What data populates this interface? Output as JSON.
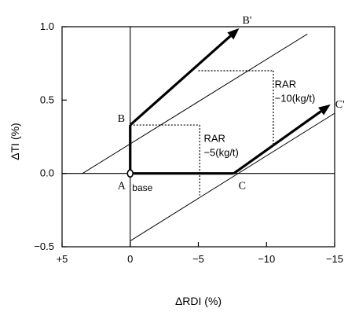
{
  "chart_data": {
    "type": "line",
    "title": "",
    "xlabel": "ΔRDI (%)",
    "ylabel": "ΔTI (%)",
    "xlim": [
      5,
      -15
    ],
    "ylim": [
      -0.5,
      1.0
    ],
    "x_ticks": [
      5,
      0,
      -5,
      -10,
      -15
    ],
    "x_tick_labels": [
      "+5",
      "0",
      "−5",
      "−10",
      "−15"
    ],
    "y_ticks": [
      -0.5,
      0.0,
      0.5,
      1.0
    ],
    "y_tick_labels": [
      "−0.5",
      "0.0",
      "0.5",
      "1.0"
    ],
    "grid": false,
    "reference_lines": [
      {
        "x": [
          5,
          -15
        ],
        "y": [
          0,
          0
        ]
      },
      {
        "x": [
          0,
          0
        ],
        "y": [
          -0.5,
          1.0
        ]
      }
    ],
    "iso_lines": [
      {
        "x": [
          3.5,
          -13.0
        ],
        "y": [
          0.0,
          0.95
        ]
      },
      {
        "x": [
          0.0,
          -15.0
        ],
        "y": [
          -0.46,
          0.41
        ]
      }
    ],
    "paths": [
      {
        "x": [
          0,
          0
        ],
        "y": [
          0,
          0.33
        ]
      },
      {
        "x": [
          0,
          -7.6
        ],
        "y": [
          0,
          0
        ]
      }
    ],
    "arrows": [
      {
        "x": [
          0,
          -8.0
        ],
        "y": [
          0.33,
          0.99
        ]
      },
      {
        "x": [
          -7.6,
          -14.7
        ],
        "y": [
          0,
          0.47
        ]
      }
    ],
    "dotted_lines": [
      {
        "x": [
          0,
          -5.1
        ],
        "y": [
          0.33,
          0.33
        ]
      },
      {
        "x": [
          -5.1,
          -5.1
        ],
        "y": [
          0.33,
          -0.15
        ]
      },
      {
        "x": [
          -5.0,
          -10.5
        ],
        "y": [
          0.7,
          0.7
        ]
      },
      {
        "x": [
          -10.5,
          -10.5
        ],
        "y": [
          0.7,
          0.2
        ]
      }
    ],
    "points": [
      {
        "label": "A",
        "x": 0,
        "y": 0
      },
      {
        "label": "B",
        "x": 0,
        "y": 0.33
      },
      {
        "label": "C",
        "x": -7.6,
        "y": 0
      },
      {
        "label": "B'",
        "x": -8.0,
        "y": 0.99
      },
      {
        "label": "C'",
        "x": -14.7,
        "y": 0.47
      }
    ],
    "annotations": [
      {
        "text": "base",
        "x": 0.2,
        "y": -0.05
      },
      {
        "line1": "RAR",
        "line2": "−5(kg/t)",
        "x": -5.4,
        "y": 0.3
      },
      {
        "line1": "RAR",
        "line2": "−10(kg/t)",
        "x": -10.6,
        "y": 0.67
      }
    ]
  }
}
